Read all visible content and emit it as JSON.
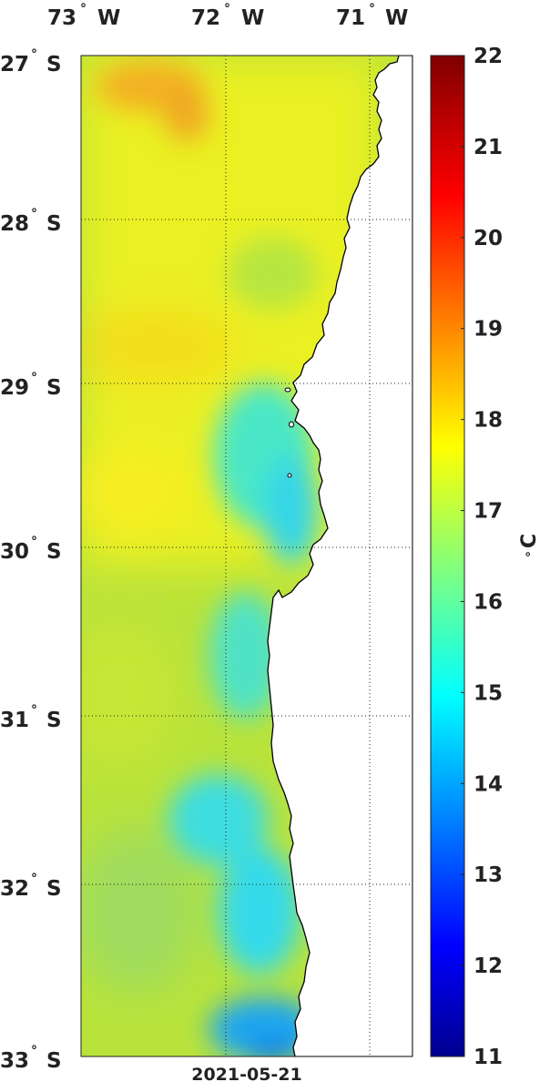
{
  "map": {
    "lon_labels": [
      {
        "deg": "73",
        "hemi": "W"
      },
      {
        "deg": "72",
        "hemi": "W"
      },
      {
        "deg": "71",
        "hemi": "W"
      }
    ],
    "lat_labels": [
      {
        "deg": "27",
        "hemi": "S"
      },
      {
        "deg": "28",
        "hemi": "S"
      },
      {
        "deg": "29",
        "hemi": "S"
      },
      {
        "deg": "30",
        "hemi": "S"
      },
      {
        "deg": "31",
        "hemi": "S"
      },
      {
        "deg": "32",
        "hemi": "S"
      },
      {
        "deg": "33",
        "hemi": "S"
      }
    ],
    "degree_symbol": "°",
    "date": "2021-05-21"
  },
  "colorbar": {
    "ticks": [
      "22",
      "21",
      "20",
      "19",
      "18",
      "17",
      "16",
      "15",
      "14",
      "13",
      "12",
      "11"
    ],
    "unit_degree": "°",
    "unit_letter": "C",
    "range": [
      11,
      22
    ]
  },
  "colors": {
    "land": "#ffffff",
    "coast": "#000000",
    "grid": "#222222"
  }
}
